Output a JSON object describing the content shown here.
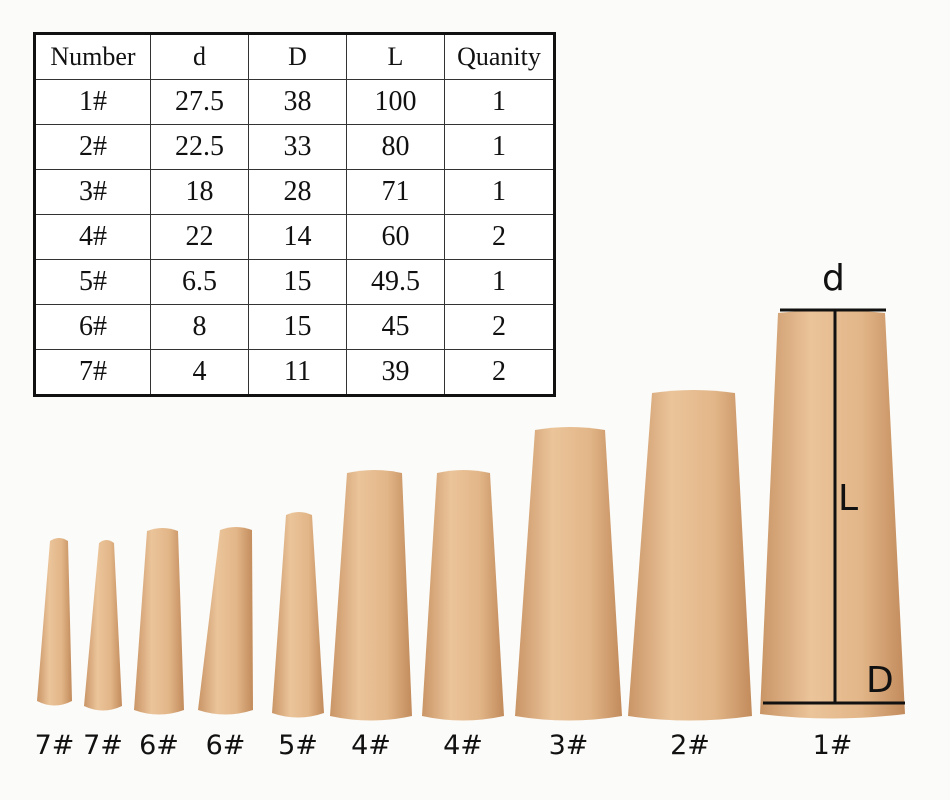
{
  "table": {
    "headers": [
      "Number",
      "d",
      "D",
      "L",
      "Quanity"
    ],
    "rows": [
      [
        "1#",
        "27.5",
        "38",
        "100",
        "1"
      ],
      [
        "2#",
        "22.5",
        "33",
        "80",
        "1"
      ],
      [
        "3#",
        "18",
        "28",
        "71",
        "1"
      ],
      [
        "4#",
        "22",
        "14",
        "60",
        "2"
      ],
      [
        "5#",
        "6.5",
        "15",
        "49.5",
        "1"
      ],
      [
        "6#",
        "8",
        "15",
        "45",
        "2"
      ],
      [
        "7#",
        "4",
        "11",
        "39",
        "2"
      ]
    ]
  },
  "plug_labels": [
    "7#",
    "7#",
    "6#",
    "6#",
    "5#",
    "4#",
    "4#",
    "3#",
    "2#",
    "1#"
  ],
  "dimension_labels": {
    "d": "d",
    "L": "L",
    "D": "D"
  },
  "colors": {
    "wood": "#e3b98c",
    "wood_dark": "#c99566",
    "line": "#111111"
  }
}
